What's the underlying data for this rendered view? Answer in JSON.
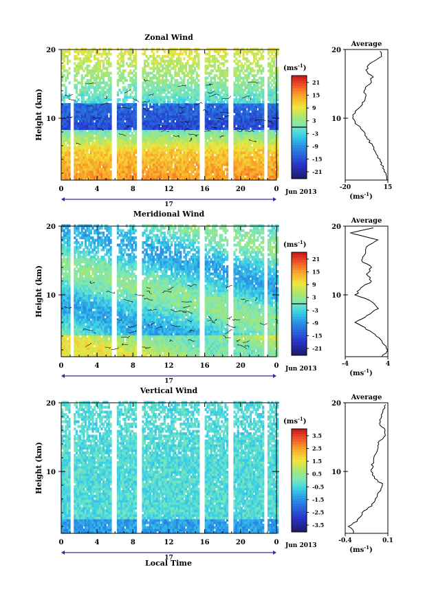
{
  "panels": [
    {
      "title": "Zonal Wind",
      "ylabel": "Height (km)",
      "colorbar_unit": "(ms",
      "colorbar_ticks": [
        "21",
        "15",
        "9",
        "3",
        "-3",
        "-9",
        "-15",
        "-21"
      ],
      "average_title": "Average",
      "average_ticks": [
        "-20",
        "15"
      ],
      "average_unit": "(ms",
      "date_label": "Jun 2013",
      "day_label": "17"
    },
    {
      "title": "Meridional Wind",
      "ylabel": "Height (km)",
      "colorbar_unit": "(ms",
      "colorbar_ticks": [
        "21",
        "15",
        "9",
        "3",
        "-3",
        "-9",
        "-15",
        "-21"
      ],
      "average_title": "Average",
      "average_ticks": [
        "-4",
        "4"
      ],
      "average_unit": "(ms",
      "date_label": "Jun 2013",
      "day_label": "17"
    },
    {
      "title": "Vertical Wind",
      "ylabel": "Height (km)",
      "colorbar_unit": "(ms",
      "colorbar_ticks": [
        "3.5",
        "2.5",
        "1.5",
        "0.5",
        "-0.5",
        "-1.5",
        "-2.5",
        "-3.5"
      ],
      "average_title": "Average",
      "average_ticks": [
        "-0.4",
        "0.1"
      ],
      "average_unit": "(ms",
      "date_label": "Jun 2013",
      "day_label": "17"
    }
  ],
  "xlabel": "Local Time",
  "unit_exponent": "-1",
  "chart_data": [
    {
      "type": "heatmap",
      "title": "Zonal Wind",
      "xlabel": "Local Time",
      "ylabel": "Height (km)",
      "xlim": [
        0,
        24
      ],
      "ylim": [
        1,
        20
      ],
      "x_ticks": [
        "0",
        "4",
        "8",
        "12",
        "16",
        "20",
        "0"
      ],
      "y_ticks": [
        "10",
        "20"
      ],
      "colorbar_label": "(ms-1)",
      "colorbar_ticks": [
        21,
        15,
        9,
        3,
        -3,
        -9,
        -15,
        -21
      ],
      "average_profile": {
        "xlim": [
          -20,
          15
        ],
        "xticks": [
          -20,
          15
        ],
        "height_km": [
          1,
          2,
          3,
          4,
          5,
          6,
          7,
          8,
          9,
          10,
          11,
          12,
          13,
          14,
          15,
          16,
          17,
          18,
          19,
          20
        ],
        "value_ms": [
          15,
          13,
          11,
          8,
          5,
          2,
          -1,
          -5,
          -10,
          -14,
          -12,
          -6,
          -3,
          -5,
          0,
          2,
          -3,
          0,
          10,
          8
        ]
      }
    },
    {
      "type": "heatmap",
      "title": "Meridional Wind",
      "xlabel": "Local Time",
      "ylabel": "Height (km)",
      "xlim": [
        0,
        24
      ],
      "ylim": [
        1,
        20
      ],
      "x_ticks": [
        "0",
        "4",
        "8",
        "12",
        "16",
        "20",
        "0"
      ],
      "y_ticks": [
        "10",
        "20"
      ],
      "colorbar_label": "(ms-1)",
      "colorbar_ticks": [
        21,
        15,
        9,
        3,
        -3,
        -9,
        -15,
        -21
      ],
      "average_profile": {
        "xlim": [
          -4,
          4
        ],
        "xticks": [
          -4,
          4
        ],
        "height_km": [
          1,
          2,
          3,
          4,
          5,
          6,
          7,
          8,
          9,
          10,
          11,
          12,
          13,
          14,
          15,
          16,
          17,
          18,
          19,
          20
        ],
        "value_ms": [
          3,
          4,
          3,
          2,
          0,
          -2,
          0,
          2,
          1,
          -2,
          -1,
          1,
          0,
          1,
          -1,
          0,
          0,
          2,
          -3,
          3
        ]
      }
    },
    {
      "type": "heatmap",
      "title": "Vertical Wind",
      "xlabel": "Local Time",
      "ylabel": "Height (km)",
      "xlim": [
        0,
        24
      ],
      "ylim": [
        1,
        20
      ],
      "x_ticks": [
        "0",
        "4",
        "8",
        "12",
        "16",
        "20",
        "0"
      ],
      "y_ticks": [
        "10",
        "20"
      ],
      "colorbar_label": "(ms-1)",
      "colorbar_ticks": [
        3.5,
        2.5,
        1.5,
        0.5,
        -0.5,
        -1.5,
        -2.5,
        -3.5
      ],
      "average_profile": {
        "xlim": [
          -0.4,
          0.1
        ],
        "xticks": [
          -0.4,
          0.1
        ],
        "height_km": [
          1,
          2,
          3,
          4,
          5,
          6,
          7,
          8,
          9,
          10,
          11,
          12,
          13,
          14,
          15,
          16,
          17,
          18,
          19,
          20
        ],
        "value_ms": [
          -0.3,
          -0.35,
          -0.25,
          -0.2,
          -0.1,
          -0.05,
          0.0,
          0.05,
          -0.05,
          -0.1,
          -0.08,
          -0.05,
          -0.03,
          -0.02,
          0.05,
          0.08,
          0.0,
          0.02,
          0.05,
          0.08
        ]
      }
    }
  ]
}
